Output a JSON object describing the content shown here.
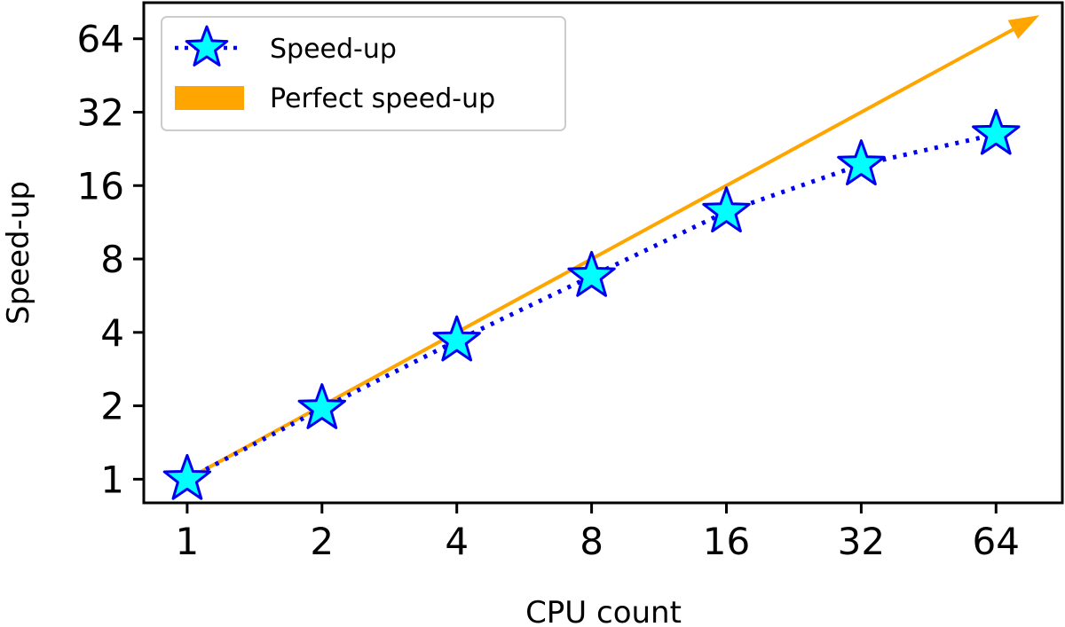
{
  "chart_data": {
    "type": "line",
    "xlabel": "CPU count",
    "ylabel": "Speed-up",
    "xscale": "log2",
    "yscale": "log2",
    "xlim": [
      0.8,
      90
    ],
    "ylim": [
      0.8,
      90
    ],
    "x_ticks": [
      1,
      2,
      4,
      8,
      16,
      32,
      64
    ],
    "y_ticks": [
      1,
      2,
      4,
      8,
      16,
      32,
      64
    ],
    "x_tick_labels": [
      "1",
      "2",
      "4",
      "8",
      "16",
      "32",
      "64"
    ],
    "y_tick_labels": [
      "1",
      "2",
      "4",
      "8",
      "16",
      "32",
      "64"
    ],
    "grid": false,
    "legend_position": "top-left",
    "series": [
      {
        "name": "Speed-up",
        "style": "dotted line with star markers",
        "line_color": "#0000ee",
        "marker_fill": "#00ffff",
        "marker_edge": "#0000ee",
        "x": [
          1,
          2,
          4,
          8,
          16,
          32,
          64
        ],
        "y": [
          1,
          1.95,
          3.7,
          6.8,
          12.5,
          19.5,
          26
        ]
      },
      {
        "name": "Perfect speed-up",
        "style": "arrow",
        "color": "#ffa500",
        "x": [
          1,
          80
        ],
        "y": [
          1,
          80
        ]
      }
    ]
  }
}
